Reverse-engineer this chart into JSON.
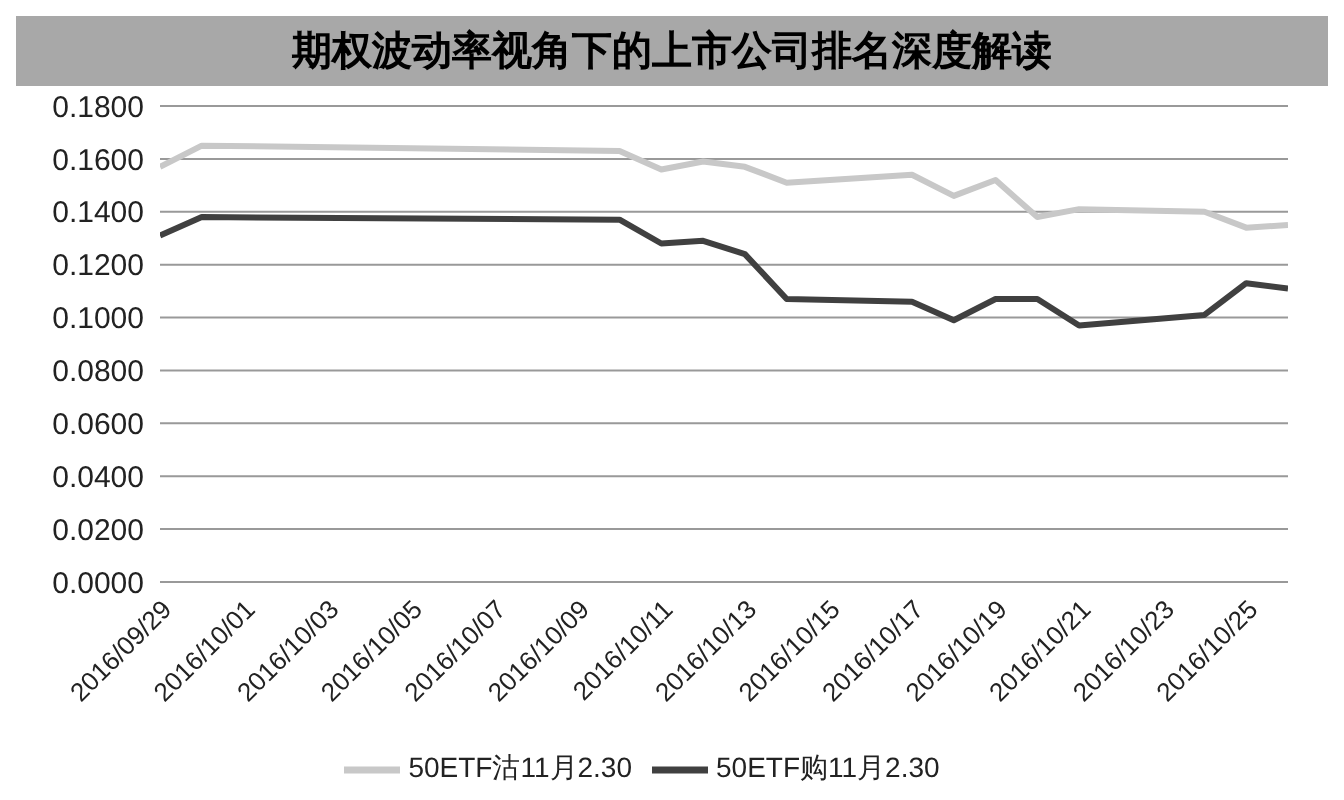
{
  "chart_data": {
    "type": "line",
    "title": "期权波动率视角下的上市公司排名深度解读",
    "x": [
      "2016-09-29",
      "2016-09-30",
      "2016-10-10",
      "2016-10-11",
      "2016-10-12",
      "2016-10-13",
      "2016-10-14",
      "2016-10-17",
      "2016-10-18",
      "2016-10-19",
      "2016-10-20",
      "2016-10-21",
      "2016-10-24",
      "2016-10-25",
      "2016-10-26"
    ],
    "series": [
      {
        "name": "50ETF购11月2.30",
        "color": "#404040",
        "values": [
          0.131,
          0.138,
          0.137,
          0.128,
          0.129,
          0.124,
          0.107,
          0.106,
          0.099,
          0.107,
          0.107,
          0.097,
          0.101,
          0.113,
          0.111
        ]
      },
      {
        "name": "50ETF沽11月2.30",
        "color": "#c8c8c8",
        "values": [
          0.157,
          0.165,
          0.163,
          0.156,
          0.159,
          0.157,
          0.151,
          0.154,
          0.146,
          0.152,
          0.138,
          0.141,
          0.14,
          0.134,
          0.135
        ]
      }
    ],
    "xlim": [
      "2016-09-29",
      "2016-10-26"
    ],
    "xticks": [
      {
        "value": "2016-09-29",
        "label": "2016/09/29"
      },
      {
        "value": "2016-10-01",
        "label": "2016/10/01"
      },
      {
        "value": "2016-10-03",
        "label": "2016/10/03"
      },
      {
        "value": "2016-10-05",
        "label": "2016/10/05"
      },
      {
        "value": "2016-10-07",
        "label": "2016/10/07"
      },
      {
        "value": "2016-10-09",
        "label": "2016/10/09"
      },
      {
        "value": "2016-10-11",
        "label": "2016/10/11"
      },
      {
        "value": "2016-10-13",
        "label": "2016/10/13"
      },
      {
        "value": "2016-10-15",
        "label": "2016/10/15"
      },
      {
        "value": "2016-10-17",
        "label": "2016/10/17"
      },
      {
        "value": "2016-10-19",
        "label": "2016/10/19"
      },
      {
        "value": "2016-10-21",
        "label": "2016/10/21"
      },
      {
        "value": "2016-10-23",
        "label": "2016/10/23"
      },
      {
        "value": "2016-10-25",
        "label": "2016/10/25"
      }
    ],
    "ylim": [
      0,
      0.18
    ],
    "yticks": [
      {
        "value": 0,
        "label": "0.0000"
      },
      {
        "value": 0.02,
        "label": "0.0200"
      },
      {
        "value": 0.04,
        "label": "0.0400"
      },
      {
        "value": 0.06,
        "label": "0.0600"
      },
      {
        "value": 0.08,
        "label": "0.0800"
      },
      {
        "value": 0.1,
        "label": "0.1000"
      },
      {
        "value": 0.12,
        "label": "0.1200"
      },
      {
        "value": 0.14,
        "label": "0.1400"
      },
      {
        "value": 0.16,
        "label": "0.1600"
      },
      {
        "value": 0.18,
        "label": "0.1800"
      }
    ],
    "grid": "y",
    "legend": "bottom",
    "marker": "none",
    "line_style": "solid"
  }
}
